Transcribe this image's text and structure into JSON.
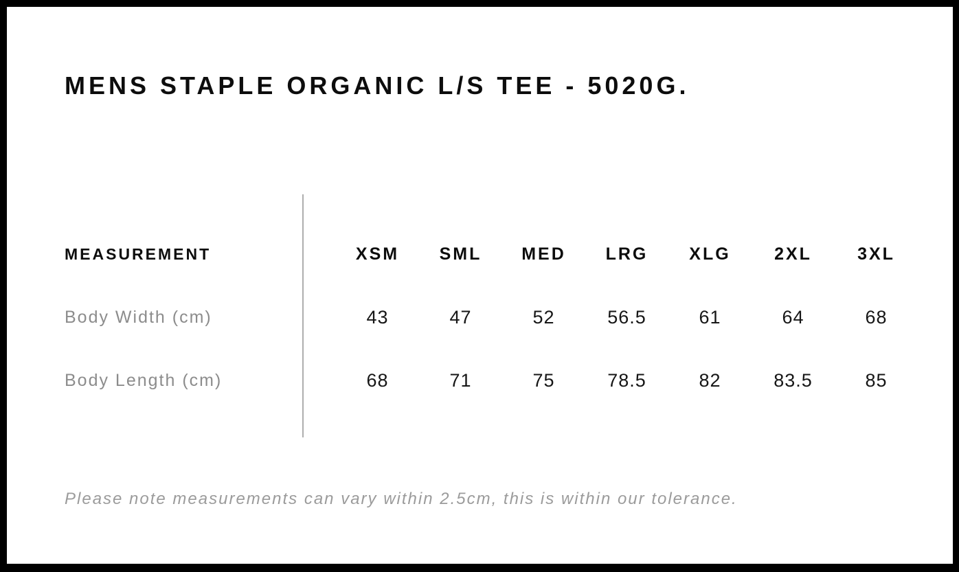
{
  "page": {
    "title": "MENS STAPLE ORGANIC L/S TEE - 5020G.",
    "note": "Please note measurements can vary within 2.5cm, this is within our tolerance."
  },
  "chart_data": {
    "type": "table",
    "title": "MENS STAPLE ORGANIC L/S TEE - 5020G.",
    "columns": [
      "MEASUREMENT",
      "XSM",
      "SML",
      "MED",
      "LRG",
      "XLG",
      "2XL",
      "3XL"
    ],
    "rows": [
      {
        "label": "Body Width (cm)",
        "values": [
          "43",
          "47",
          "52",
          "56.5",
          "61",
          "64",
          "68"
        ]
      },
      {
        "label": "Body Length (cm)",
        "values": [
          "68",
          "71",
          "75",
          "78.5",
          "82",
          "83.5",
          "85"
        ]
      }
    ],
    "note": "Please note measurements can vary within 2.5cm, this is within our tolerance.",
    "units": "cm",
    "tolerance_cm": 2.5
  },
  "colors": {
    "frame": "#000000",
    "background": "#ffffff",
    "heading_text": "#0d0d0d",
    "value_text": "#161616",
    "muted_text": "#8c8c8c",
    "note_text": "#9b9b9b",
    "divider": "#aeaeae"
  }
}
